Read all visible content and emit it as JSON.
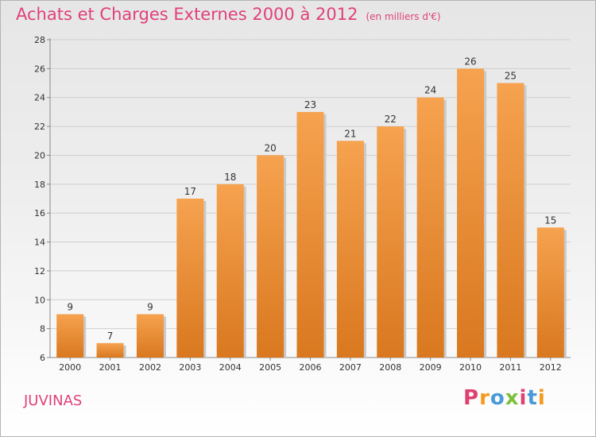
{
  "header": {
    "title": "Achats et Charges Externes 2000 à 2012",
    "unit": "(en milliers d'€)"
  },
  "footer": {
    "town": "JUVINAS",
    "logo": "Proxiti",
    "logo_colors": [
      "#e04070",
      "#f39a1b",
      "#4a9ad8",
      "#7bbf3a",
      "#e04070",
      "#4a9ad8",
      "#f39a1b"
    ]
  },
  "chart_data": {
    "type": "bar",
    "title": "Achats et Charges Externes 2000 à 2012",
    "subtitle": "(en milliers d'€)",
    "categories": [
      "2000",
      "2001",
      "2002",
      "2003",
      "2004",
      "2005",
      "2006",
      "2007",
      "2008",
      "2009",
      "2010",
      "2011",
      "2012"
    ],
    "values": [
      9,
      7,
      9,
      17,
      18,
      20,
      23,
      21,
      22,
      24,
      26,
      25,
      15
    ],
    "ylim": [
      6,
      28
    ],
    "yticks": [
      6,
      8,
      10,
      12,
      14,
      16,
      18,
      20,
      22,
      24,
      26,
      28
    ],
    "grid": true,
    "bar_color_top": "#f6a24f",
    "bar_color_bottom": "#d9781f"
  }
}
